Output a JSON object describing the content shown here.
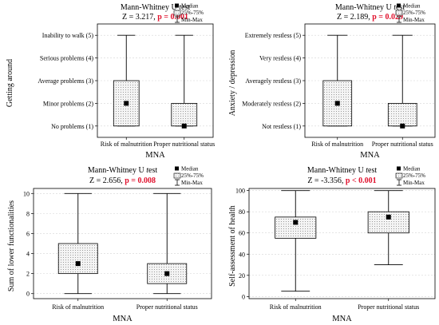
{
  "chart_data": [
    {
      "type": "box",
      "title": "Mann-Whitney U test",
      "stat_value": "Z = 3.217,",
      "p_value": "p = 0.001",
      "xlabel": "MNA",
      "ylabel": "Getting around",
      "ylim": [
        0.5,
        5.5
      ],
      "y_ticks": [
        {
          "value": 1,
          "label": "No problems (1)"
        },
        {
          "value": 2,
          "label": "Minor problems (2)"
        },
        {
          "value": 3,
          "label": "Average problems (3)"
        },
        {
          "value": 4,
          "label": "Serious problems (4)"
        },
        {
          "value": 5,
          "label": "Inability to walk (5)"
        }
      ],
      "categories": [
        "Risk of malnutrition",
        "Proper nutritional status"
      ],
      "series": [
        {
          "median": 2,
          "q1": 1,
          "q3": 3,
          "min": 1,
          "max": 5
        },
        {
          "median": 1,
          "q1": 1,
          "q3": 2,
          "min": 1,
          "max": 5
        }
      ],
      "legend": [
        "Median",
        "25%-75%",
        "Min-Max"
      ],
      "grid": true
    },
    {
      "type": "box",
      "title": "Mann-Whitney U test",
      "stat_value": "Z = 2.189,",
      "p_value": "p = 0.029",
      "xlabel": "MNA",
      "ylabel": "Anxiety / depression",
      "ylim": [
        0.5,
        5.5
      ],
      "y_ticks": [
        {
          "value": 1,
          "label": "Not restless (1)"
        },
        {
          "value": 2,
          "label": "Moderately restless (2)"
        },
        {
          "value": 3,
          "label": "Averagely restless (3)"
        },
        {
          "value": 4,
          "label": "Very restless (4)"
        },
        {
          "value": 5,
          "label": "Extremely restless (5)"
        }
      ],
      "categories": [
        "Risk of malnutrition",
        "Proper nutritional status"
      ],
      "series": [
        {
          "median": 2,
          "q1": 1,
          "q3": 3,
          "min": 1,
          "max": 5
        },
        {
          "median": 1,
          "q1": 1,
          "q3": 2,
          "min": 1,
          "max": 5
        }
      ],
      "legend": [
        "Median",
        "25%-75%",
        "Min-Max"
      ],
      "grid": true
    },
    {
      "type": "box",
      "title": "Mann-Whitney U test",
      "stat_value": "Z = 2.656,",
      "p_value": "p = 0.008",
      "xlabel": "MNA",
      "ylabel": "Sum of lower functionalities",
      "ylim": [
        -0.5,
        10.5
      ],
      "y_ticks": [
        {
          "value": 0,
          "label": "0"
        },
        {
          "value": 2,
          "label": "2"
        },
        {
          "value": 4,
          "label": "4"
        },
        {
          "value": 6,
          "label": "6"
        },
        {
          "value": 8,
          "label": "8"
        },
        {
          "value": 10,
          "label": "10"
        }
      ],
      "categories": [
        "Risk of malnutrition",
        "Proper nutritional status"
      ],
      "series": [
        {
          "median": 3,
          "q1": 2,
          "q3": 5,
          "min": 0,
          "max": 10
        },
        {
          "median": 2,
          "q1": 1,
          "q3": 3,
          "min": 0,
          "max": 10
        }
      ],
      "legend": [
        "Median",
        "25%-75%",
        "Min-Max"
      ],
      "grid": true
    },
    {
      "type": "box",
      "title": "Mann-Whitney U test",
      "stat_value": "Z = -3.356,",
      "p_value": "p < 0.001",
      "xlabel": "MNA",
      "ylabel": "Self-assessment of health",
      "ylim": [
        -2,
        102
      ],
      "y_ticks": [
        {
          "value": 0,
          "label": "0"
        },
        {
          "value": 20,
          "label": "20"
        },
        {
          "value": 40,
          "label": "40"
        },
        {
          "value": 60,
          "label": "60"
        },
        {
          "value": 80,
          "label": "80"
        },
        {
          "value": 100,
          "label": "100"
        }
      ],
      "categories": [
        "Risk of malnutrition",
        "Proper nutritional status"
      ],
      "series": [
        {
          "median": 70,
          "q1": 55,
          "q3": 75,
          "min": 5,
          "max": 100
        },
        {
          "median": 75,
          "q1": 60,
          "q3": 80,
          "min": 30,
          "max": 100
        }
      ],
      "legend": [
        "Median",
        "25%-75%",
        "Min-Max"
      ],
      "grid": true
    }
  ]
}
